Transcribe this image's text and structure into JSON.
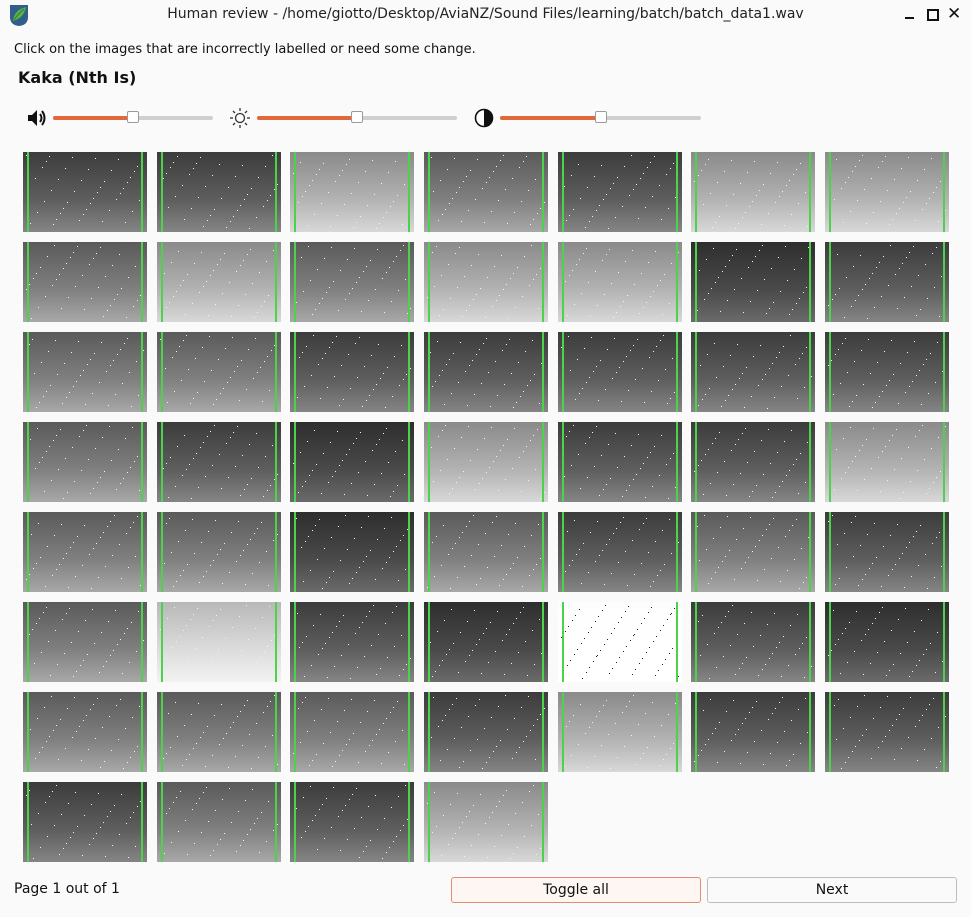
{
  "window": {
    "title": "Human review - /home/giotto/Desktop/AviaNZ/Sound Files/learning/batch/batch_data1.wav",
    "icon": "avianz-leaf-icon"
  },
  "instruction": "Click on the images that are incorrectly labelled or need some change.",
  "species": "Kaka (Nth Is)",
  "sliders": [
    {
      "name": "volume",
      "icon": "speaker-icon",
      "value_fraction": 0.5
    },
    {
      "name": "brightness",
      "icon": "sun-icon",
      "value_fraction": 0.5
    },
    {
      "name": "contrast",
      "icon": "contrast-icon",
      "value_fraction": 0.5
    }
  ],
  "colors": {
    "accent": "#e2683c",
    "segment_marker": "#4cd34c"
  },
  "thumbnails": [
    {
      "shade": "dark"
    },
    {
      "shade": "dark"
    },
    {
      "shade": "light"
    },
    {
      "shade": "medium"
    },
    {
      "shade": "dark"
    },
    {
      "shade": "light"
    },
    {
      "shade": "light"
    },
    {
      "shade": "medium"
    },
    {
      "shade": "light"
    },
    {
      "shade": "medium"
    },
    {
      "shade": "light"
    },
    {
      "shade": "light"
    },
    {
      "shade": "verydark"
    },
    {
      "shade": "dark"
    },
    {
      "shade": "medium"
    },
    {
      "shade": "medium"
    },
    {
      "shade": "dark"
    },
    {
      "shade": "dark"
    },
    {
      "shade": "dark"
    },
    {
      "shade": "dark"
    },
    {
      "shade": "dark"
    },
    {
      "shade": "medium"
    },
    {
      "shade": "dark"
    },
    {
      "shade": "verydark"
    },
    {
      "shade": "light"
    },
    {
      "shade": "dark"
    },
    {
      "shade": "dark"
    },
    {
      "shade": "light"
    },
    {
      "shade": "medium"
    },
    {
      "shade": "medium"
    },
    {
      "shade": "verydark"
    },
    {
      "shade": "medium"
    },
    {
      "shade": "dark"
    },
    {
      "shade": "medium"
    },
    {
      "shade": "dark"
    },
    {
      "shade": "medium"
    },
    {
      "shade": "verylight"
    },
    {
      "shade": "dark"
    },
    {
      "shade": "verydark"
    },
    {
      "shade": "white"
    },
    {
      "shade": "dark"
    },
    {
      "shade": "verydark"
    },
    {
      "shade": "medium"
    },
    {
      "shade": "medium"
    },
    {
      "shade": "medium"
    },
    {
      "shade": "dark"
    },
    {
      "shade": "light"
    },
    {
      "shade": "dark"
    },
    {
      "shade": "dark"
    },
    {
      "shade": "dark"
    },
    {
      "shade": "medium"
    },
    {
      "shade": "dark"
    },
    {
      "shade": "light"
    }
  ],
  "footer": {
    "page_label": "Page 1 out of 1",
    "toggle_all_label": "Toggle all",
    "next_label": "Next"
  }
}
